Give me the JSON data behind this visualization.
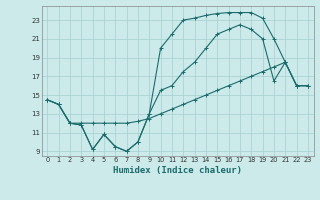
{
  "title": "",
  "xlabel": "Humidex (Indice chaleur)",
  "bg_color": "#cceaea",
  "grid_color": "#aad4d4",
  "line_color": "#1a6b6b",
  "xlim": [
    -0.5,
    23.5
  ],
  "ylim": [
    8.5,
    24.5
  ],
  "xticks": [
    0,
    1,
    2,
    3,
    4,
    5,
    6,
    7,
    8,
    9,
    10,
    11,
    12,
    13,
    14,
    15,
    16,
    17,
    18,
    19,
    20,
    21,
    22,
    23
  ],
  "yticks": [
    9,
    11,
    13,
    15,
    17,
    19,
    21,
    23
  ],
  "series1_x": [
    0,
    1,
    2,
    3,
    4,
    5,
    6,
    7,
    8,
    9,
    10,
    11,
    12,
    13,
    14,
    15,
    16,
    17,
    18,
    19,
    20,
    21,
    22,
    23
  ],
  "series1_y": [
    14.5,
    14.0,
    12.0,
    11.8,
    9.2,
    10.8,
    9.5,
    9.0,
    10.0,
    13.0,
    15.5,
    16.0,
    17.5,
    18.5,
    20.0,
    21.5,
    22.0,
    22.5,
    22.0,
    21.0,
    16.5,
    18.5,
    16.0,
    16.0
  ],
  "series2_x": [
    0,
    1,
    2,
    3,
    4,
    5,
    6,
    7,
    8,
    9,
    10,
    11,
    12,
    13,
    14,
    15,
    16,
    17,
    18,
    19,
    20,
    21,
    22,
    23
  ],
  "series2_y": [
    14.5,
    14.0,
    12.0,
    12.0,
    12.0,
    12.0,
    12.0,
    12.0,
    12.2,
    12.5,
    13.0,
    13.5,
    14.0,
    14.5,
    15.0,
    15.5,
    16.0,
    16.5,
    17.0,
    17.5,
    18.0,
    18.5,
    16.0,
    16.0
  ],
  "series3_x": [
    0,
    1,
    2,
    3,
    4,
    5,
    6,
    7,
    8,
    9,
    10,
    11,
    12,
    13,
    14,
    15,
    16,
    17,
    18,
    19,
    20,
    21,
    22,
    23
  ],
  "series3_y": [
    14.5,
    14.0,
    12.0,
    11.8,
    9.2,
    10.8,
    9.5,
    9.0,
    10.0,
    13.0,
    20.0,
    21.5,
    23.0,
    23.2,
    23.5,
    23.7,
    23.8,
    23.8,
    23.8,
    23.2,
    21.0,
    18.5,
    16.0,
    16.0
  ]
}
